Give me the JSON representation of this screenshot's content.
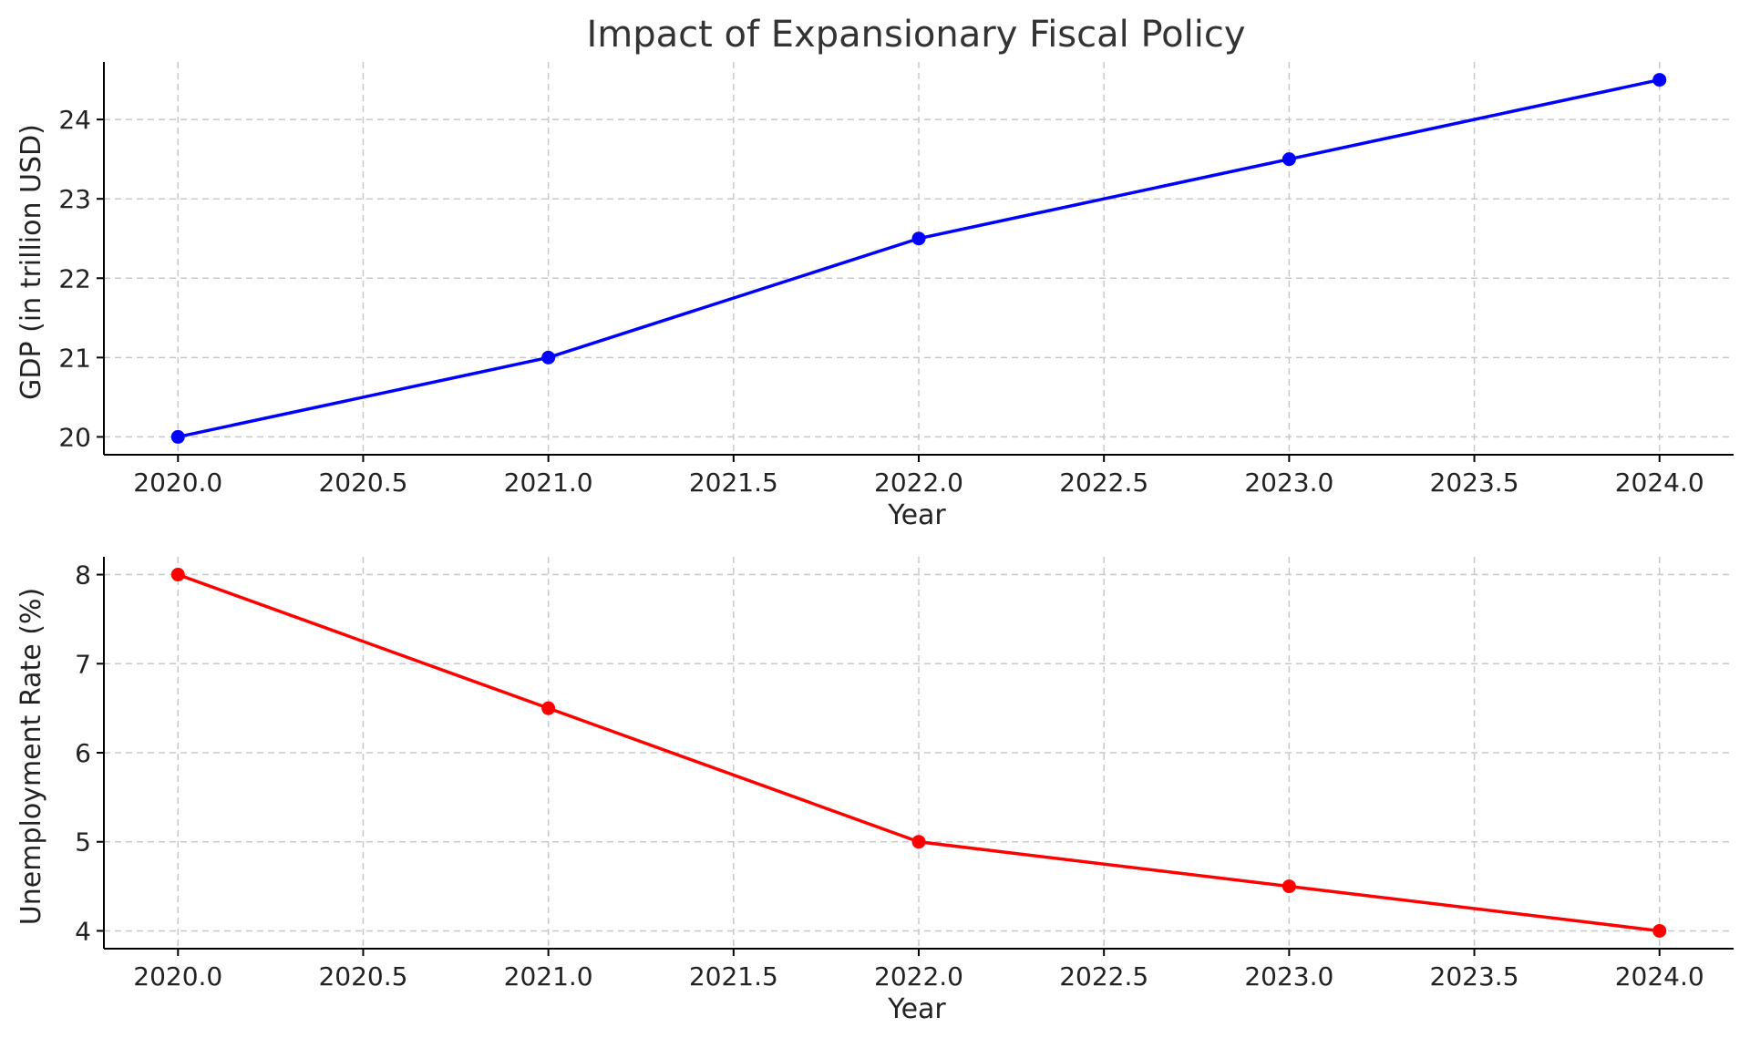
{
  "chart_data": {
    "title": "Impact of Expansionary Fiscal Policy",
    "subplots": [
      {
        "type": "line",
        "name": "gdp",
        "x": [
          2020,
          2021,
          2022,
          2023,
          2024
        ],
        "y": [
          20,
          21,
          22.5,
          23.5,
          24.5
        ],
        "xlabel": "Year",
        "ylabel": "GDP (in trillion USD)",
        "color": "#0000ff",
        "marker": "circle",
        "xlim": [
          2019.8,
          2024.2
        ],
        "ylim": [
          19.775,
          24.725
        ],
        "xticks": [
          "2020.0",
          "2020.5",
          "2021.0",
          "2021.5",
          "2022.0",
          "2022.5",
          "2023.0",
          "2023.5",
          "2024.0"
        ],
        "yticks": [
          "20",
          "21",
          "22",
          "23",
          "24"
        ],
        "grid": true
      },
      {
        "type": "line",
        "name": "unemployment",
        "x": [
          2020,
          2021,
          2022,
          2023,
          2024
        ],
        "y": [
          8,
          6.5,
          5,
          4.5,
          4
        ],
        "xlabel": "Year",
        "ylabel": "Unemployment Rate (%)",
        "color": "#ff0000",
        "marker": "circle",
        "xlim": [
          2019.8,
          2024.2
        ],
        "ylim": [
          3.8,
          8.2
        ],
        "xticks": [
          "2020.0",
          "2020.5",
          "2021.0",
          "2021.5",
          "2022.0",
          "2022.5",
          "2023.0",
          "2023.5",
          "2024.0"
        ],
        "yticks": [
          "4",
          "5",
          "6",
          "7",
          "8"
        ],
        "grid": true
      }
    ]
  }
}
